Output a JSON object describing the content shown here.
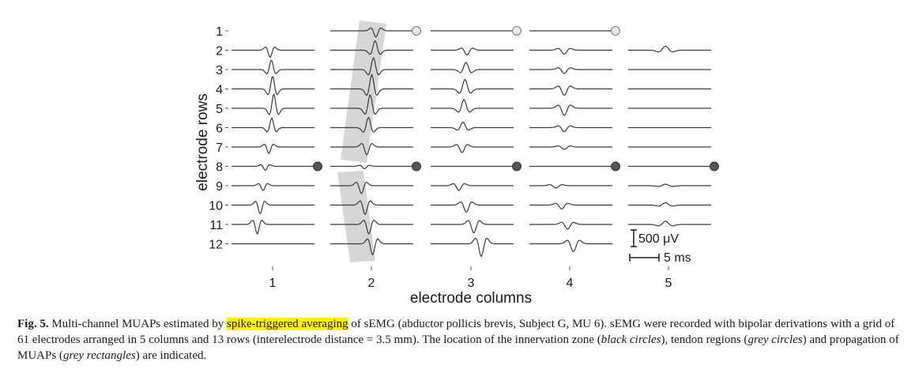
{
  "figure": {
    "row_axis_title": "electrode rows",
    "column_axis_title": "electrode columns",
    "row_labels": [
      "1",
      "2",
      "3",
      "4",
      "5",
      "6",
      "7",
      "8",
      "9",
      "10",
      "11",
      "12"
    ],
    "column_labels": [
      "1",
      "2",
      "3",
      "4",
      "5"
    ],
    "scale_amplitude": "500 μV",
    "scale_time": "5 ms",
    "colors": {
      "trace": "#3a3a3a",
      "propagation_rect": "#d6d6d6",
      "innervation_circle": "#555555",
      "tendon_circle": "#e6e6e6"
    }
  },
  "caption": {
    "fig_label": "Fig. 5.",
    "part1": " Multi-channel MUAPs estimated by ",
    "highlight": "spike-triggered averaging",
    "part2": " of sEMG (abductor pollicis brevis, Subject G, MU 6). sEMG were recorded with bipolar derivations with a grid of 61 electrodes arranged in 5 columns and 13 rows (interelectrode distance = 3.5 mm). The location of the innervation zone (",
    "em1": "black circles",
    "part3": "), tendon regions (",
    "em2": "grey circles",
    "part4": ") and propagation of MUAPs (",
    "em3": "grey rectangles",
    "part5": ") are indicated."
  }
}
